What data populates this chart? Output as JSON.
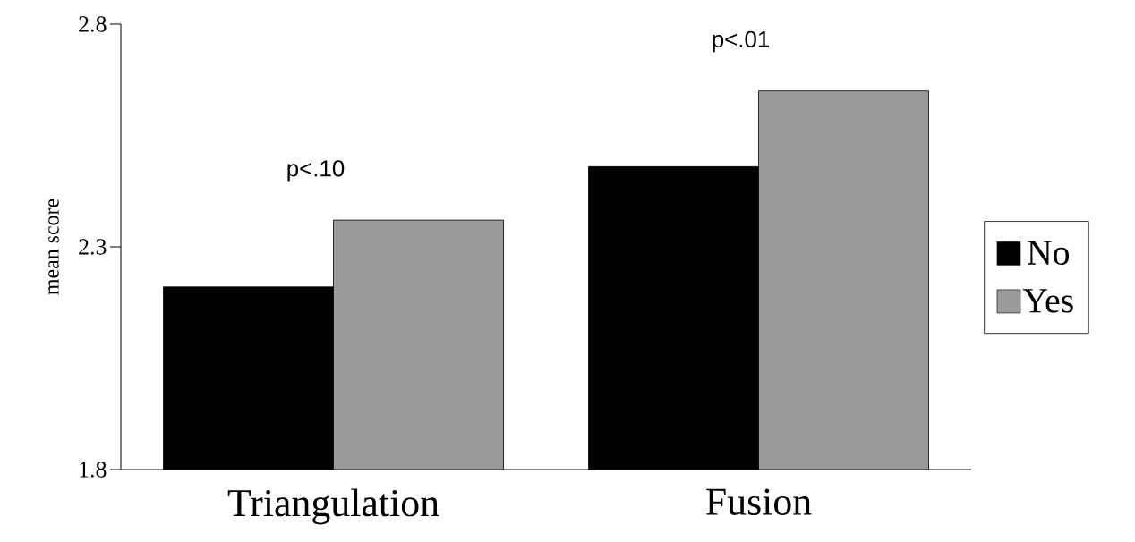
{
  "chart_data": {
    "type": "bar",
    "ylabel": "mean score",
    "categories": [
      "Triangulation",
      "Fusion"
    ],
    "series": [
      {
        "name": "No",
        "color": "#000000",
        "values": [
          2.21,
          2.48
        ]
      },
      {
        "name": "Yes",
        "color": "#9a9a9a",
        "values": [
          2.36,
          2.65
        ]
      }
    ],
    "ylim": [
      1.8,
      2.8
    ],
    "yticks": [
      1.8,
      2.3,
      2.8
    ],
    "grid": false,
    "legend": "right",
    "annotations": [
      {
        "text": "p<.10",
        "x": "Triangulation",
        "y": 2.36
      },
      {
        "text": "p<.01",
        "x": "Fusion",
        "y": 2.65
      }
    ]
  }
}
